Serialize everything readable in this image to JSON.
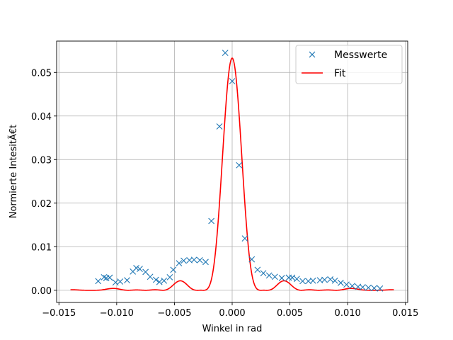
{
  "chart_data": {
    "type": "scatter",
    "title": "",
    "xlabel": "Winkel in rad",
    "ylabel": "Normierte IntesitÃ€t",
    "xlim": [
      -0.0152,
      0.0152
    ],
    "ylim": [
      -0.0028,
      0.0572
    ],
    "grid": true,
    "legend_position": "top-right",
    "x_ticks": [
      {
        "value": -0.015,
        "label": "−0.015"
      },
      {
        "value": -0.01,
        "label": "−0.010"
      },
      {
        "value": -0.005,
        "label": "−0.005"
      },
      {
        "value": 0.0,
        "label": "0.000"
      },
      {
        "value": 0.005,
        "label": "0.005"
      },
      {
        "value": 0.01,
        "label": "0.010"
      },
      {
        "value": 0.015,
        "label": "0.015"
      }
    ],
    "y_ticks": [
      {
        "value": 0.0,
        "label": "0.00"
      },
      {
        "value": 0.01,
        "label": "0.01"
      },
      {
        "value": 0.02,
        "label": "0.02"
      },
      {
        "value": 0.03,
        "label": "0.03"
      },
      {
        "value": 0.04,
        "label": "0.04"
      },
      {
        "value": 0.05,
        "label": "0.05"
      }
    ],
    "series": [
      {
        "name": "Messwerte",
        "kind": "markers",
        "marker": "x",
        "color": "#1f77b4",
        "points": [
          [
            -0.0116,
            0.0021
          ],
          [
            -0.0111,
            0.003
          ],
          [
            -0.0109,
            0.0028
          ],
          [
            -0.0106,
            0.0029
          ],
          [
            -0.0101,
            0.0018
          ],
          [
            -0.0097,
            0.002
          ],
          [
            -0.0091,
            0.0023
          ],
          [
            -0.0086,
            0.0043
          ],
          [
            -0.0083,
            0.0051
          ],
          [
            -0.008,
            0.0049
          ],
          [
            -0.0075,
            0.0042
          ],
          [
            -0.0071,
            0.0031
          ],
          [
            -0.0066,
            0.0024
          ],
          [
            -0.0063,
            0.0019
          ],
          [
            -0.0059,
            0.0022
          ],
          [
            -0.0054,
            0.003
          ],
          [
            -0.0051,
            0.0047
          ],
          [
            -0.0046,
            0.0062
          ],
          [
            -0.0042,
            0.0068
          ],
          [
            -0.0037,
            0.0069
          ],
          [
            -0.0033,
            0.007
          ],
          [
            -0.0028,
            0.0069
          ],
          [
            -0.0023,
            0.0065
          ],
          [
            -0.0018,
            0.0159
          ],
          [
            -0.0011,
            0.0376
          ],
          [
            -0.0006,
            0.0545
          ],
          [
            0.0,
            0.048
          ],
          [
            0.0006,
            0.0287
          ],
          [
            0.0011,
            0.0119
          ],
          [
            0.0017,
            0.0071
          ],
          [
            0.0022,
            0.0047
          ],
          [
            0.0027,
            0.0039
          ],
          [
            0.0032,
            0.0034
          ],
          [
            0.0037,
            0.0031
          ],
          [
            0.0043,
            0.0028
          ],
          [
            0.0049,
            0.0029
          ],
          [
            0.0052,
            0.0029
          ],
          [
            0.0056,
            0.0026
          ],
          [
            0.0061,
            0.0021
          ],
          [
            0.0066,
            0.0021
          ],
          [
            0.007,
            0.0022
          ],
          [
            0.0076,
            0.0023
          ],
          [
            0.008,
            0.0024
          ],
          [
            0.0085,
            0.0025
          ],
          [
            0.0089,
            0.0022
          ],
          [
            0.0094,
            0.0017
          ],
          [
            0.0099,
            0.0013
          ],
          [
            0.0104,
            0.001
          ],
          [
            0.0109,
            0.0008
          ],
          [
            0.0113,
            0.0007
          ],
          [
            0.0118,
            0.0006
          ],
          [
            0.0123,
            0.0005
          ],
          [
            0.0128,
            0.0004
          ]
        ]
      },
      {
        "name": "Fit",
        "kind": "line",
        "color": "#ff0000",
        "function": "sinc2_double_slit",
        "params": {
          "amplitude": 0.0533,
          "x_range": [
            -0.014,
            0.014
          ],
          "sinc_zero": 0.003,
          "cos_period": 0.005
        }
      }
    ]
  }
}
